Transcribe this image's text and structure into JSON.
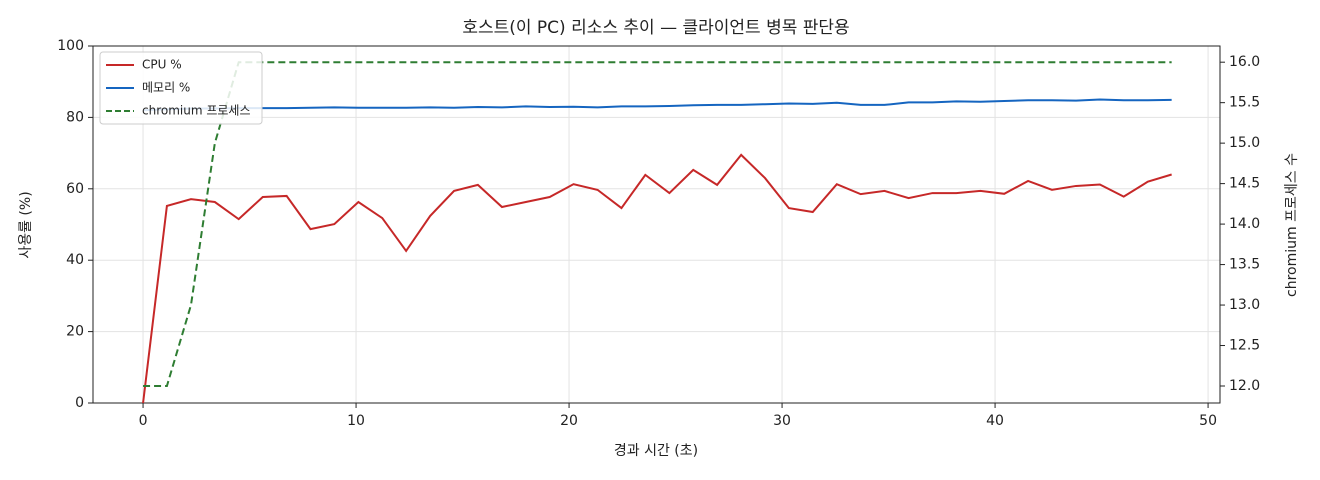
{
  "chart_data": {
    "type": "line",
    "title": "호스트(이 PC) 리소스 추이 — 클라이언트 병목 판단용",
    "xlabel": "경과 시간 (초)",
    "ylabel": "사용률 (%)",
    "y2label": "chromium 프로세스 수",
    "x": [
      0,
      1.12,
      2.25,
      3.37,
      4.49,
      5.62,
      6.74,
      7.86,
      8.98,
      10.11,
      11.23,
      12.35,
      13.48,
      14.6,
      15.72,
      16.85,
      17.97,
      19.09,
      20.21,
      21.34,
      22.46,
      23.58,
      24.71,
      25.83,
      26.95,
      28.08,
      29.2,
      30.32,
      31.44,
      32.57,
      33.69,
      34.81,
      35.94,
      37.06,
      38.18,
      39.31,
      40.43,
      41.55,
      42.67,
      43.8,
      44.92,
      46.04,
      47.17,
      48.29
    ],
    "series": [
      {
        "name": "CPU %",
        "color": "#c62828",
        "dashed": false,
        "values": [
          0,
          55.2,
          57.1,
          56.3,
          51.5,
          57.7,
          58.0,
          48.7,
          50.1,
          56.3,
          51.8,
          42.6,
          52.4,
          59.4,
          61.1,
          54.9,
          56.3,
          57.7,
          61.3,
          59.7,
          54.6,
          63.9,
          58.8,
          65.3,
          61.1,
          69.5,
          63.0,
          54.6,
          53.5,
          61.3,
          58.5,
          59.4,
          57.4,
          58.8,
          58.8,
          59.4,
          58.6,
          62.2,
          59.7,
          60.8,
          61.2,
          57.8,
          62.0,
          64.0
        ]
      },
      {
        "name": "메모리 %",
        "color": "#1565c0",
        "dashed": false,
        "values": [
          82,
          82.3,
          82.5,
          82.5,
          82.6,
          82.6,
          82.6,
          82.7,
          82.8,
          82.7,
          82.7,
          82.7,
          82.8,
          82.7,
          82.9,
          82.8,
          83.1,
          82.9,
          83.0,
          82.8,
          83.1,
          83.1,
          83.2,
          83.4,
          83.5,
          83.5,
          83.7,
          83.9,
          83.8,
          84.1,
          83.5,
          83.5,
          84.2,
          84.2,
          84.5,
          84.4,
          84.6,
          84.8,
          84.8,
          84.7,
          85.0,
          84.8,
          84.8,
          84.9
        ]
      },
      {
        "name": "chromium 프로세스",
        "color": "#2e7d32",
        "dashed": true,
        "axis": "y2",
        "values": [
          12,
          12,
          13,
          15,
          16,
          16,
          16,
          16,
          16,
          16,
          16,
          16,
          16,
          16,
          16,
          16,
          16,
          16,
          16,
          16,
          16,
          16,
          16,
          16,
          16,
          16,
          16,
          16,
          16,
          16,
          16,
          16,
          16,
          16,
          16,
          16,
          16,
          16,
          16,
          16,
          16,
          16,
          16,
          16
        ]
      }
    ],
    "xlim": [
      -2.35,
      50.56
    ],
    "xticks": [
      0,
      10,
      20,
      30,
      40,
      50
    ],
    "ylim": [
      0,
      100
    ],
    "yticks": [
      0,
      20,
      40,
      60,
      80,
      100
    ],
    "y2lim": [
      11.79,
      16.2
    ],
    "y2ticks": [
      {
        "value": 12,
        "label": "12.0"
      },
      {
        "value": 12.5,
        "label": "12.5"
      },
      {
        "value": 13,
        "label": "13.0"
      },
      {
        "value": 13.5,
        "label": "13.5"
      },
      {
        "value": 14,
        "label": "14.0"
      },
      {
        "value": 14.5,
        "label": "14.5"
      },
      {
        "value": 15,
        "label": "15.0"
      },
      {
        "value": 15.5,
        "label": "15.5"
      },
      {
        "value": 16,
        "label": "16.0"
      }
    ],
    "grid": true,
    "legend": "upper left"
  }
}
